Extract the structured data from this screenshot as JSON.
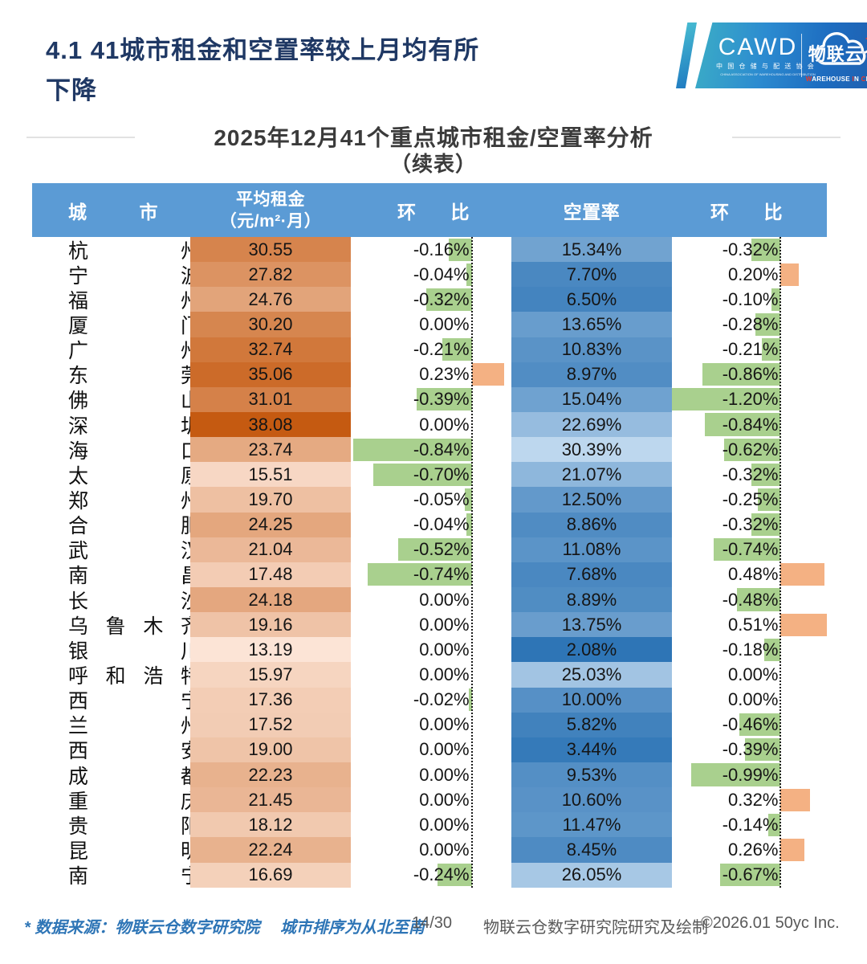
{
  "header": {
    "title_line1": "4.1 41城市租金和空置率较上月均有所",
    "title_line2": "下降"
  },
  "logo": {
    "cawd_acronym": "CAWD",
    "cawd_cn": "中 国 仓 储 与 配 送 协 会",
    "cawd_en": "CHINA ASSOCIATION OF WAREHOUSING AND DISTRIBUTION",
    "wlyc_name": "物联云仓",
    "wlyc_tagline_parts": [
      {
        "text": "W",
        "red": true
      },
      {
        "text": "AREHOUSE ",
        "red": false
      },
      {
        "text": "I",
        "red": true
      },
      {
        "text": "N ",
        "red": false
      },
      {
        "text": "C",
        "red": true
      },
      {
        "text": "LOUD",
        "red": false
      }
    ]
  },
  "subtitle": {
    "line1": "2025年12月41个重点城市租金/空置率分析",
    "line2": "（续表）"
  },
  "table": {
    "headers": {
      "city": "城市",
      "rent_line1": "平均租金",
      "rent_line2": "（元/m²·月）",
      "rent_mom": "环比",
      "vacancy": "空置率",
      "vacancy_mom": "环比"
    },
    "rows": [
      {
        "city": "杭州",
        "rent": "30.55",
        "rent_mom": "-0.16%",
        "vacancy": "15.34%",
        "vacancy_mom": "-0.32%"
      },
      {
        "city": "宁波",
        "rent": "27.82",
        "rent_mom": "-0.04%",
        "vacancy": "7.70%",
        "vacancy_mom": "0.20%"
      },
      {
        "city": "福州",
        "rent": "24.76",
        "rent_mom": "-0.32%",
        "vacancy": "6.50%",
        "vacancy_mom": "-0.10%"
      },
      {
        "city": "厦门",
        "rent": "30.20",
        "rent_mom": "0.00%",
        "vacancy": "13.65%",
        "vacancy_mom": "-0.28%"
      },
      {
        "city": "广州",
        "rent": "32.74",
        "rent_mom": "-0.21%",
        "vacancy": "10.83%",
        "vacancy_mom": "-0.21%"
      },
      {
        "city": "东莞",
        "rent": "35.06",
        "rent_mom": "0.23%",
        "vacancy": "8.97%",
        "vacancy_mom": "-0.86%"
      },
      {
        "city": "佛山",
        "rent": "31.01",
        "rent_mom": "-0.39%",
        "vacancy": "15.04%",
        "vacancy_mom": "-1.20%"
      },
      {
        "city": "深圳",
        "rent": "38.08",
        "rent_mom": "0.00%",
        "vacancy": "22.69%",
        "vacancy_mom": "-0.84%"
      },
      {
        "city": "海口",
        "rent": "23.74",
        "rent_mom": "-0.84%",
        "vacancy": "30.39%",
        "vacancy_mom": "-0.62%"
      },
      {
        "city": "太原",
        "rent": "15.51",
        "rent_mom": "-0.70%",
        "vacancy": "21.07%",
        "vacancy_mom": "-0.32%"
      },
      {
        "city": "郑州",
        "rent": "19.70",
        "rent_mom": "-0.05%",
        "vacancy": "12.50%",
        "vacancy_mom": "-0.25%"
      },
      {
        "city": "合肥",
        "rent": "24.25",
        "rent_mom": "-0.04%",
        "vacancy": "8.86%",
        "vacancy_mom": "-0.32%"
      },
      {
        "city": "武汉",
        "rent": "21.04",
        "rent_mom": "-0.52%",
        "vacancy": "11.08%",
        "vacancy_mom": "-0.74%"
      },
      {
        "city": "南昌",
        "rent": "17.48",
        "rent_mom": "-0.74%",
        "vacancy": "7.68%",
        "vacancy_mom": "0.48%"
      },
      {
        "city": "长沙",
        "rent": "24.18",
        "rent_mom": "0.00%",
        "vacancy": "8.89%",
        "vacancy_mom": "-0.48%"
      },
      {
        "city": "乌鲁木齐",
        "rent": "19.16",
        "rent_mom": "0.00%",
        "vacancy": "13.75%",
        "vacancy_mom": "0.51%"
      },
      {
        "city": "银川",
        "rent": "13.19",
        "rent_mom": "0.00%",
        "vacancy": "2.08%",
        "vacancy_mom": "-0.18%"
      },
      {
        "city": "呼和浩特",
        "rent": "15.97",
        "rent_mom": "0.00%",
        "vacancy": "25.03%",
        "vacancy_mom": "0.00%"
      },
      {
        "city": "西宁",
        "rent": "17.36",
        "rent_mom": "-0.02%",
        "vacancy": "10.00%",
        "vacancy_mom": "0.00%"
      },
      {
        "city": "兰州",
        "rent": "17.52",
        "rent_mom": "0.00%",
        "vacancy": "5.82%",
        "vacancy_mom": "-0.46%"
      },
      {
        "city": "西安",
        "rent": "19.00",
        "rent_mom": "0.00%",
        "vacancy": "3.44%",
        "vacancy_mom": "-0.39%"
      },
      {
        "city": "成都",
        "rent": "22.23",
        "rent_mom": "0.00%",
        "vacancy": "9.53%",
        "vacancy_mom": "-0.99%"
      },
      {
        "city": "重庆",
        "rent": "21.45",
        "rent_mom": "0.00%",
        "vacancy": "10.60%",
        "vacancy_mom": "0.32%"
      },
      {
        "city": "贵阳",
        "rent": "18.12",
        "rent_mom": "0.00%",
        "vacancy": "11.47%",
        "vacancy_mom": "-0.14%"
      },
      {
        "city": "昆明",
        "rent": "22.24",
        "rent_mom": "0.00%",
        "vacancy": "8.45%",
        "vacancy_mom": "0.26%"
      },
      {
        "city": "南宁",
        "rent": "16.69",
        "rent_mom": "-0.24%",
        "vacancy": "26.05%",
        "vacancy_mom": "-0.67%"
      }
    ]
  },
  "colors": {
    "header_blue": "#5B9BD5",
    "rent_scale_light": "#FCE4D6",
    "rent_scale_dark": "#C55A11",
    "vacancy_scale_dark": "#2E75B6",
    "vacancy_scale_light": "#BDD7EE",
    "bar_negative_green": "#A9D08E",
    "bar_positive_orange": "#F4B183",
    "title_navy": "#1F3864",
    "footer_note_blue": "#2E75B6",
    "logo_red": "#E8392B"
  },
  "footer": {
    "source_note": "* 数据来源：物联云仓数字研究院　 城市排序为从北至南",
    "page_indicator": "14/30",
    "credit": "物联云仓数字研究院研究及绘制",
    "copyright": "©2026.01 50yc Inc."
  }
}
